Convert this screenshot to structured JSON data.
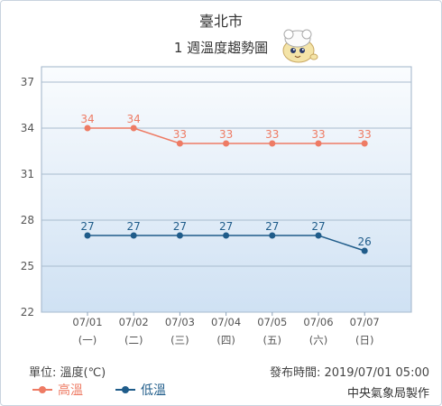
{
  "header": {
    "location": "臺北市",
    "subtitle": "1 週溫度趨勢圖"
  },
  "footer": {
    "unit": "單位: 溫度(℃)",
    "issued": "發布時間: 2019/07/01 05:00",
    "agency": "中央氣象局製作"
  },
  "chart_data": {
    "type": "line",
    "categories": [
      "07/01",
      "07/02",
      "07/03",
      "07/04",
      "07/05",
      "07/06",
      "07/07"
    ],
    "weekdays": [
      "(一)",
      "(二)",
      "(三)",
      "(四)",
      "(五)",
      "(六)",
      "(日)"
    ],
    "series": [
      {
        "name": "高溫",
        "color": "#ee7b64",
        "values": [
          34,
          34,
          33,
          33,
          33,
          33,
          33
        ]
      },
      {
        "name": "低溫",
        "color": "#1f5c8a",
        "values": [
          27,
          27,
          27,
          27,
          27,
          27,
          26
        ]
      }
    ],
    "yticks": [
      22,
      25,
      28,
      31,
      34,
      37
    ],
    "ylim": [
      22,
      38
    ],
    "grid": true,
    "legend": "bottom-left"
  }
}
